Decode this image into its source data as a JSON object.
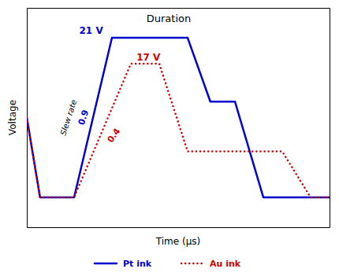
{
  "chart_data": {
    "type": "line",
    "title": "Duration",
    "xlabel": "Time (μs)",
    "ylabel": "Voltage",
    "series": [
      {
        "name": "Pt ink",
        "color": "#0000cc",
        "line_style": "solid",
        "x": [
          0,
          0.7,
          2.5,
          4.5,
          8.5,
          9.7,
          11.0,
          12.5,
          16
        ],
        "values": [
          5.5,
          1.5,
          1.5,
          9.5,
          9.5,
          6.3,
          6.3,
          1.5,
          1.5
        ]
      },
      {
        "name": "Au ink",
        "color": "#cc0000",
        "line_style": "dotted",
        "x": [
          0,
          0.7,
          2.5,
          5.5,
          7.0,
          8.5,
          13.5,
          15.0,
          16
        ],
        "values": [
          5.5,
          1.5,
          1.5,
          8.2,
          8.2,
          3.8,
          3.8,
          1.5,
          1.5
        ]
      }
    ],
    "annotations": [
      "21 V",
      "17 V",
      "Slew rate",
      "0.9",
      "0.4"
    ],
    "xlim": [
      0,
      16
    ],
    "ylim": [
      0,
      11
    ],
    "tick_labels": false,
    "grid": false,
    "legend": "bottom"
  }
}
